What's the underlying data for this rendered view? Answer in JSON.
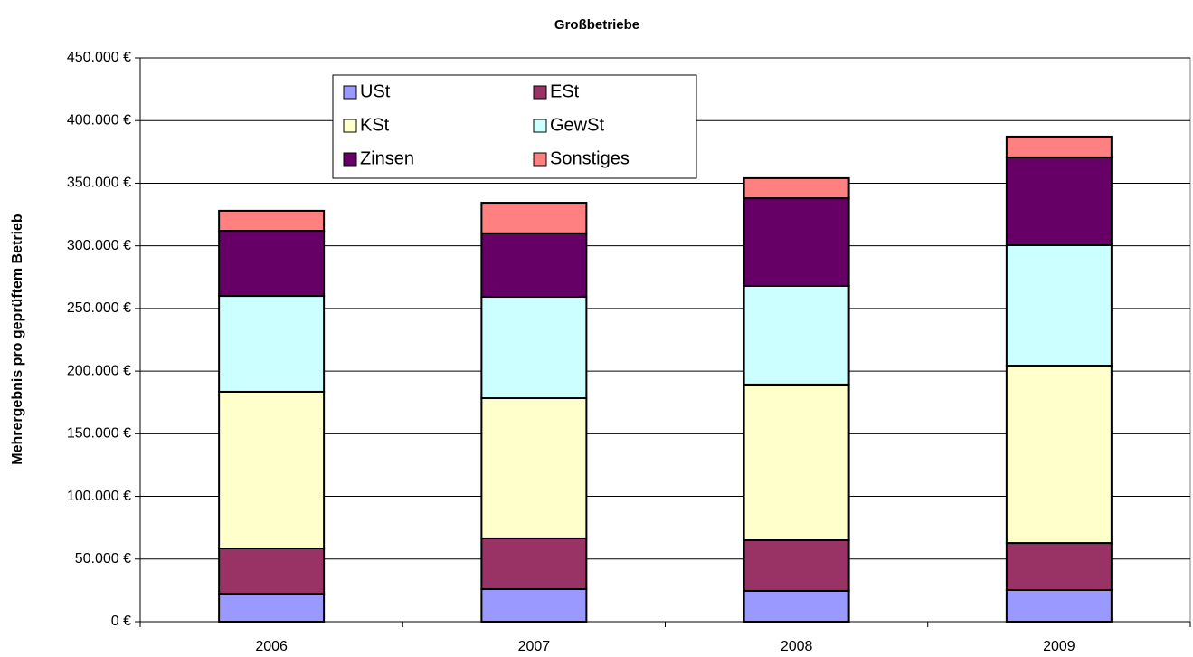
{
  "chart_data": {
    "type": "stacked_bar",
    "title": "Großbetriebe",
    "y_label": "Mehrergebnis pro geprüftem Betrieb",
    "categories": [
      "2006",
      "2007",
      "2008",
      "2009"
    ],
    "series": [
      {
        "name": "USt",
        "color": "#9999ff",
        "values": [
          22400,
          26000,
          24600,
          25300
        ]
      },
      {
        "name": "ESt",
        "color": "#993366",
        "values": [
          36100,
          40500,
          40400,
          37500
        ]
      },
      {
        "name": "KSt",
        "color": "#ffffcc",
        "values": [
          125000,
          111900,
          124300,
          141600
        ]
      },
      {
        "name": "GewSt",
        "color": "#ccffff",
        "values": [
          76500,
          80900,
          78700,
          96100
        ]
      },
      {
        "name": "Zinsen",
        "color": "#660066",
        "values": [
          52000,
          50700,
          70000,
          70100
        ]
      },
      {
        "name": "Sonstiges",
        "color": "#ff8080",
        "values": [
          16000,
          24400,
          16000,
          16600
        ]
      }
    ],
    "ylim": [
      0,
      450000
    ],
    "yticks": [
      {
        "value": 0,
        "label": "0 €"
      },
      {
        "value": 50000,
        "label": "50.000 €"
      },
      {
        "value": 100000,
        "label": "100.000 €"
      },
      {
        "value": 150000,
        "label": "150.000 €"
      },
      {
        "value": 200000,
        "label": "200.000 €"
      },
      {
        "value": 250000,
        "label": "250.000 €"
      },
      {
        "value": 300000,
        "label": "300.000 €"
      },
      {
        "value": 350000,
        "label": "350.000 €"
      },
      {
        "value": 400000,
        "label": "400.000 €"
      },
      {
        "value": 450000,
        "label": "450.000 €"
      }
    ],
    "grid": true
  }
}
